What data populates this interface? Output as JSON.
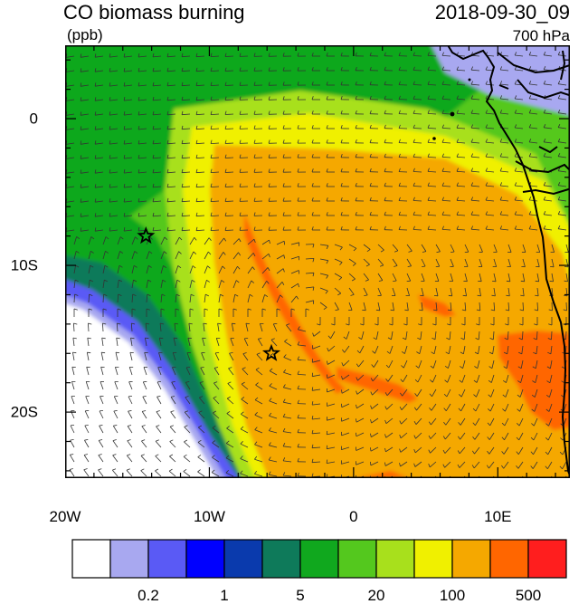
{
  "header": {
    "title": "CO biomass burning",
    "datetime": "2018-09-30_09",
    "units": "(ppb)",
    "level": "700 hPa"
  },
  "map": {
    "lon_range": [
      -20,
      15
    ],
    "lat_range": [
      -24.5,
      5
    ],
    "x_ticks": [
      {
        "lon": -20,
        "label": "20W"
      },
      {
        "lon": -10,
        "label": "10W"
      },
      {
        "lon": 0,
        "label": "0"
      },
      {
        "lon": 10,
        "label": "10E"
      }
    ],
    "y_ticks": [
      {
        "lat": 0,
        "label": "0"
      },
      {
        "lat": -10,
        "label": "10S"
      },
      {
        "lat": -20,
        "label": "20S"
      }
    ],
    "markers": [
      {
        "type": "star",
        "lon": -14.4,
        "lat": -8.0
      },
      {
        "type": "star",
        "lon": -5.7,
        "lat": -16.0
      }
    ]
  },
  "colorbar": {
    "colors": [
      "#ffffff",
      "#a8a8f0",
      "#5a5af5",
      "#0000ff",
      "#0a3aad",
      "#0e7a5a",
      "#10a81e",
      "#54c81e",
      "#a8e01c",
      "#f0f000",
      "#f5a800",
      "#ff6600",
      "#ff1e1e"
    ],
    "labels": [
      {
        "boundary": 2,
        "text": "0.2"
      },
      {
        "boundary": 4,
        "text": "1"
      },
      {
        "boundary": 6,
        "text": "5"
      },
      {
        "boundary": 8,
        "text": "20"
      },
      {
        "boundary": 10,
        "text": "100"
      },
      {
        "boundary": 12,
        "text": "500"
      }
    ]
  },
  "field_colors": {
    "ocean_white": "#ffffff",
    "light_blue": "#a8a8f0",
    "blue": "#5a5af5",
    "teal": "#0e7a5a",
    "green": "#10a81e",
    "light_green": "#54c81e",
    "yellow_green": "#a8e01c",
    "yellow": "#f0f000",
    "orange": "#f5a800",
    "dark_orange": "#ff6600"
  }
}
